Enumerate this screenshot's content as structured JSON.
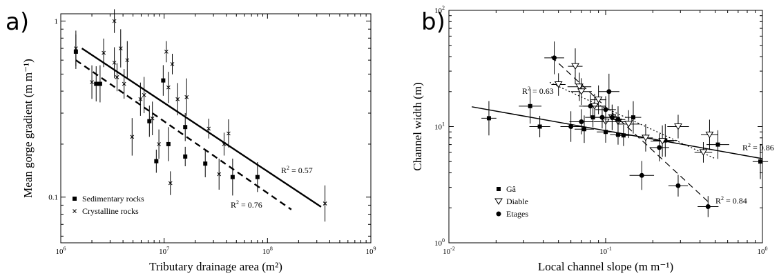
{
  "panel_a_label": "a)",
  "panel_b_label": "b)",
  "chart_data": [
    {
      "type": "scatter",
      "xlabel": "Tributary drainage area (m²)",
      "ylabel": "Mean gorge gradient (m m⁻¹)",
      "xscale": "log",
      "yscale": "log",
      "xlim": [
        1000000,
        1000000000
      ],
      "ylim": [
        0.055,
        1.1
      ],
      "x_ticks": [
        {
          "v": 1000000,
          "m": "10",
          "e": "6"
        },
        {
          "v": 10000000,
          "m": "10",
          "e": "7"
        },
        {
          "v": 100000000,
          "m": "10",
          "e": "8"
        },
        {
          "v": 1000000000,
          "m": "10",
          "e": "9"
        }
      ],
      "y_ticks": [
        {
          "v": 0.1,
          "t": "0.1"
        },
        {
          "v": 1,
          "t": "1"
        }
      ],
      "legend": {
        "position": "bottom-left",
        "entries": [
          "Sedimentary rocks",
          "Crystalline rocks"
        ]
      },
      "series": [
        {
          "name": "Sedimentary rocks",
          "marker": "square",
          "points": [
            [
              1400000,
              0.67
            ],
            [
              2200000,
              0.44
            ],
            [
              2400000,
              0.44
            ],
            [
              9800000,
              0.46
            ],
            [
              7200000,
              0.27
            ],
            [
              8400000,
              0.16
            ],
            [
              11000000,
              0.2
            ],
            [
              16000000,
              0.25
            ],
            [
              16000000,
              0.17
            ],
            [
              25000000,
              0.155
            ],
            [
              46000000,
              0.13
            ],
            [
              80000000,
              0.13
            ]
          ]
        },
        {
          "name": "Crystalline rocks",
          "marker": "x",
          "points": [
            [
              1400000,
              0.7
            ],
            [
              2000000,
              0.45
            ],
            [
              2600000,
              0.66
            ],
            [
              3300000,
              1.0
            ],
            [
              3300000,
              0.58
            ],
            [
              3500000,
              0.48
            ],
            [
              3800000,
              0.7
            ],
            [
              4100000,
              0.44
            ],
            [
              4400000,
              0.6
            ],
            [
              4900000,
              0.22
            ],
            [
              5900000,
              0.36
            ],
            [
              6400000,
              0.38
            ],
            [
              7700000,
              0.28
            ],
            [
              8900000,
              0.2
            ],
            [
              10500000,
              0.67
            ],
            [
              11000000,
              0.42
            ],
            [
              11500000,
              0.12
            ],
            [
              12000000,
              0.57
            ],
            [
              13500000,
              0.36
            ],
            [
              16500000,
              0.37
            ],
            [
              27000000,
              0.245
            ],
            [
              34000000,
              0.135
            ],
            [
              38000000,
              0.2
            ],
            [
              42000000,
              0.23
            ],
            [
              360000000,
              0.092
            ]
          ]
        }
      ],
      "fits": [
        {
          "style": "solid",
          "from": [
            1600000,
            0.7
          ],
          "to": [
            330000000,
            0.088
          ],
          "r2_label": "R",
          "r2_value": " = 0.57"
        },
        {
          "style": "dashed",
          "from": [
            1400000,
            0.6
          ],
          "to": [
            170000000,
            0.085
          ],
          "r2_label": "R",
          "r2_value": " = 0.76"
        }
      ]
    },
    {
      "type": "scatter",
      "xlabel": "Local channel slope (m m⁻¹)",
      "ylabel": "Channel width (m)",
      "xscale": "log",
      "yscale": "log",
      "xlim": [
        0.01,
        1
      ],
      "ylim": [
        1,
        100
      ],
      "x_ticks": [
        {
          "v": 0.01,
          "m": "10",
          "e": "-2"
        },
        {
          "v": 0.1,
          "m": "10",
          "e": "-1"
        },
        {
          "v": 1,
          "m": "10",
          "e": "0"
        }
      ],
      "y_ticks": [
        {
          "v": 1,
          "m": "10",
          "e": "0"
        },
        {
          "v": 10,
          "m": "10",
          "e": "1"
        },
        {
          "v": 100,
          "m": "10",
          "e": "2"
        }
      ],
      "legend": {
        "position": "bottom-left",
        "entries": [
          "Gâ",
          "Diable",
          "Etages"
        ]
      },
      "series": [
        {
          "name": "Gâ",
          "marker": "square",
          "points": [
            [
              0.018,
              11.8
            ],
            [
              0.033,
              15
            ],
            [
              0.038,
              10
            ],
            [
              0.073,
              9.5
            ],
            [
              0.083,
              12
            ],
            [
              0.1,
              9
            ],
            [
              0.12,
              8.5
            ],
            [
              0.13,
              8.4
            ],
            [
              0.15,
              12
            ],
            [
              0.24,
              7.6
            ],
            [
              0.52,
              7
            ],
            [
              0.97,
              5
            ]
          ]
        },
        {
          "name": "Diable",
          "marker": "triangle-down",
          "points": [
            [
              0.05,
              23
            ],
            [
              0.064,
              33
            ],
            [
              0.068,
              22
            ],
            [
              0.07,
              20
            ],
            [
              0.085,
              15
            ],
            [
              0.09,
              17
            ],
            [
              0.1,
              11
            ],
            [
              0.11,
              12
            ],
            [
              0.12,
              11
            ],
            [
              0.14,
              10.5
            ],
            [
              0.18,
              8
            ],
            [
              0.23,
              7.5
            ],
            [
              0.29,
              10
            ],
            [
              0.42,
              6
            ],
            [
              0.46,
              8.5
            ]
          ]
        },
        {
          "name": "Etages",
          "marker": "circle",
          "points": [
            [
              0.047,
              39
            ],
            [
              0.06,
              10
            ],
            [
              0.07,
              11
            ],
            [
              0.08,
              15
            ],
            [
              0.095,
              12
            ],
            [
              0.1,
              14
            ],
            [
              0.105,
              20
            ],
            [
              0.11,
              12
            ],
            [
              0.12,
              11.5
            ],
            [
              0.17,
              3.8
            ],
            [
              0.22,
              6.6
            ],
            [
              0.29,
              3.1
            ],
            [
              0.45,
              2.05
            ]
          ]
        }
      ],
      "fits": [
        {
          "style": "solid",
          "from": [
            0.014,
            14.8
          ],
          "to": [
            1,
            5.3
          ],
          "r2_label": "R",
          "r2_value": " = 0.86"
        },
        {
          "style": "dotted",
          "from": [
            0.044,
            24
          ],
          "to": [
            0.5,
            5.3
          ],
          "r2_label": "R",
          "r2_value": " = 0.63"
        },
        {
          "style": "dashed",
          "from": [
            0.045,
            40
          ],
          "to": [
            0.46,
            2.2
          ],
          "r2_label": "R",
          "r2_value": " = 0.84"
        }
      ]
    }
  ]
}
